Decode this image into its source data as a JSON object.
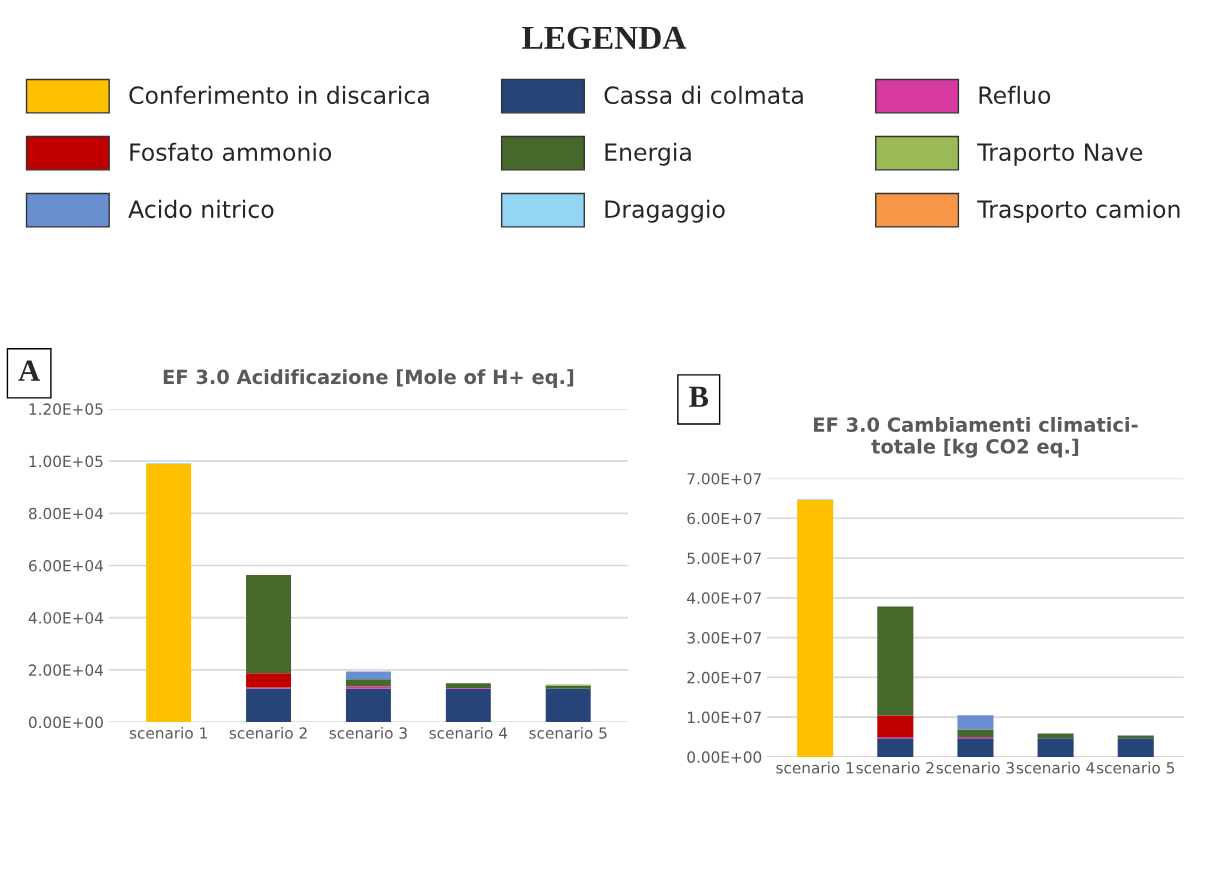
{
  "chart_data": [
    {
      "type": "bar",
      "stacked": true,
      "title": "EF 3.0 Acidificazione [Mole of H+ eq.]",
      "annotations": [
        "A"
      ],
      "legend": "top",
      "legend_title": "LEGENDA",
      "grid": "y",
      "categories": [
        "scenario 1",
        "scenario 2",
        "scenario 3",
        "scenario 4",
        "scenario 5"
      ],
      "ylim": [
        0,
        120000
      ],
      "yticks": [
        {
          "value": 0,
          "label": "0.00E+00"
        },
        {
          "value": 20000,
          "label": "2.00E+04"
        },
        {
          "value": 40000,
          "label": "4.00E+04"
        },
        {
          "value": 60000,
          "label": "6.00E+04"
        },
        {
          "value": 80000,
          "label": "8.00E+04"
        },
        {
          "value": 100000,
          "label": "1.00E+05"
        },
        {
          "value": 120000,
          "label": "1.20E+05"
        }
      ],
      "series": [
        {
          "name": "Conferimento in discarica",
          "color": "#ffc000",
          "values": [
            98900,
            null,
            null,
            null,
            null
          ]
        },
        {
          "name": "Cassa di colmata",
          "color": "#264478",
          "values": [
            null,
            12900,
            12800,
            12800,
            12800
          ]
        },
        {
          "name": "Refluo",
          "color": "#d63a9e",
          "values": [
            null,
            400,
            900,
            300,
            null
          ]
        },
        {
          "name": "Fosfato ammonio",
          "color": "#c00000",
          "values": [
            null,
            5400,
            null,
            null,
            null
          ]
        },
        {
          "name": "Energia",
          "color": "#44692b",
          "values": [
            null,
            37700,
            2700,
            1800,
            1200
          ]
        },
        {
          "name": "Traporto Nave",
          "color": "#9bbb59",
          "values": [
            null,
            null,
            null,
            null,
            400
          ]
        },
        {
          "name": "Acido nitrico",
          "color": "#6a8fd0",
          "values": [
            null,
            null,
            3000,
            null,
            null
          ]
        },
        {
          "name": "Dragaggio",
          "color": "#93d5f2",
          "values": [
            300,
            null,
            null,
            null,
            null
          ]
        },
        {
          "name": "Trasporto camion",
          "color": "#f79646",
          "values": [
            null,
            null,
            null,
            null,
            null
          ]
        }
      ]
    },
    {
      "type": "bar",
      "stacked": true,
      "title": "EF 3.0 Cambiamenti climatici-\ntotale [kg CO2 eq.]",
      "annotations": [
        "B"
      ],
      "grid": "y",
      "categories": [
        "scenario 1",
        "scenario 2",
        "scenario 3",
        "scenario 4",
        "scenario 5"
      ],
      "ylim": [
        0,
        70000000
      ],
      "yticks": [
        {
          "value": 0,
          "label": "0.00E+00"
        },
        {
          "value": 10000000,
          "label": "1.00E+07"
        },
        {
          "value": 20000000,
          "label": "2.00E+07"
        },
        {
          "value": 30000000,
          "label": "3.00E+07"
        },
        {
          "value": 40000000,
          "label": "4.00E+07"
        },
        {
          "value": 50000000,
          "label": "5.00E+07"
        },
        {
          "value": 60000000,
          "label": "6.00E+07"
        },
        {
          "value": 70000000,
          "label": "7.00E+07"
        }
      ],
      "series": [
        {
          "color": "#ffc000",
          "values": [
            64600000,
            null,
            null,
            null,
            null
          ]
        },
        {
          "color": "#264478",
          "values": [
            null,
            4700000,
            4700000,
            4700000,
            4700000
          ]
        },
        {
          "color": "#d63a9e",
          "values": [
            null,
            300000,
            300000,
            null,
            null
          ]
        },
        {
          "color": "#c00000",
          "values": [
            null,
            5400000,
            null,
            null,
            null
          ]
        },
        {
          "color": "#44692b",
          "values": [
            null,
            27400000,
            1900000,
            1200000,
            700000
          ]
        },
        {
          "color": "#6a8fd0",
          "values": [
            null,
            null,
            3600000,
            null,
            null
          ]
        },
        {
          "color": "#93d5f2",
          "values": [
            200000,
            null,
            null,
            null,
            null
          ]
        }
      ]
    }
  ]
}
